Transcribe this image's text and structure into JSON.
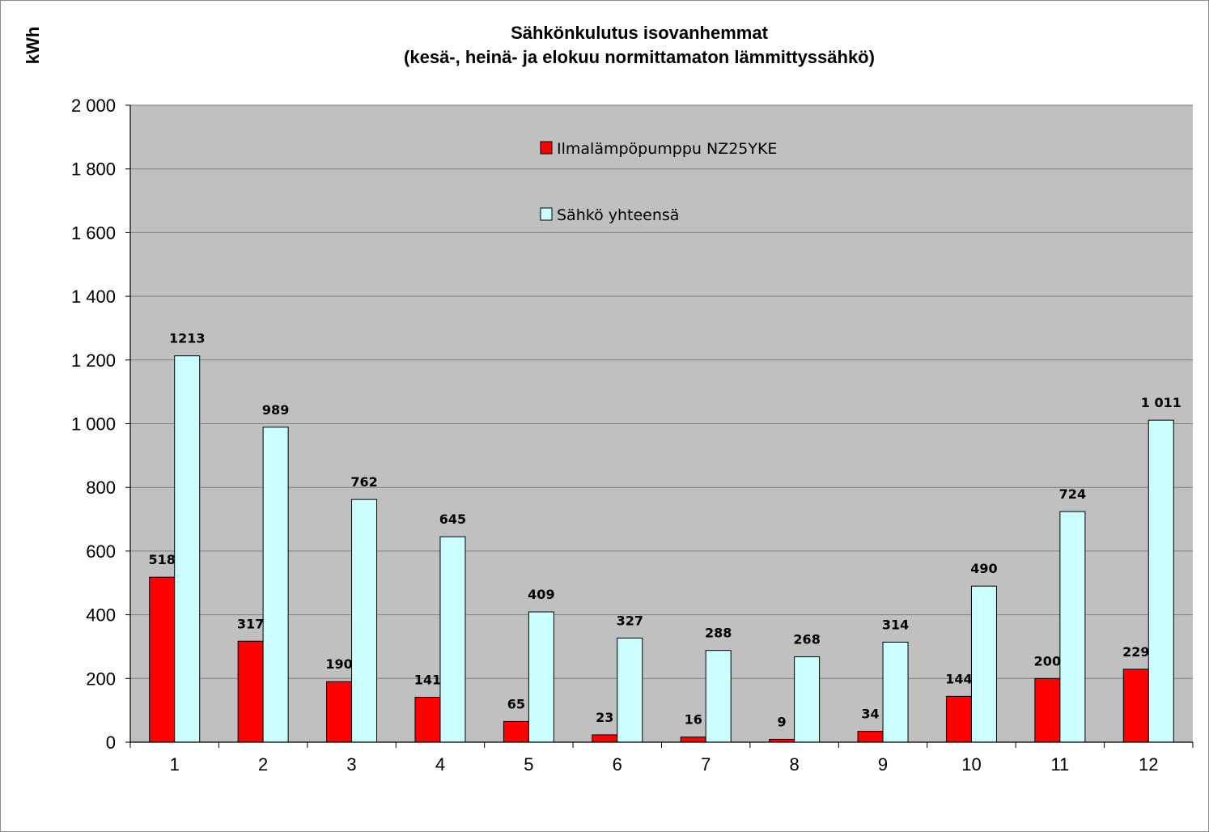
{
  "chart_data": {
    "type": "bar",
    "title": "Sähkönkulutus isovanhemmat",
    "subtitle": "(kesä-, heinä- ja elokuu normittamaton lämmittyssähkö)",
    "xlabel": "",
    "ylabel": "kWh",
    "ylim": [
      0,
      2000
    ],
    "yticks": [
      0,
      200,
      400,
      600,
      800,
      1000,
      1200,
      1400,
      1600,
      1800,
      2000
    ],
    "ytick_labels": [
      "0",
      "200",
      "400",
      "600",
      "800",
      "1 000",
      "1 200",
      "1 400",
      "1 600",
      "1 800",
      "2 000"
    ],
    "categories": [
      "1",
      "2",
      "3",
      "4",
      "5",
      "6",
      "7",
      "8",
      "9",
      "10",
      "11",
      "12"
    ],
    "grid": true,
    "legend_position": "top-center",
    "series": [
      {
        "name": "Ilmalämpöpumppu NZ25YKE",
        "color": "#ff0000",
        "values": [
          518,
          317,
          190,
          141,
          65,
          23,
          16,
          9,
          34,
          144,
          200,
          229
        ],
        "labels": [
          "518",
          "317",
          "190",
          "141",
          "65",
          "23",
          "16",
          "9",
          "34",
          "144",
          "200",
          "229"
        ]
      },
      {
        "name": "Sähkö yhteensä",
        "color": "#ccffff",
        "values": [
          1213,
          989,
          762,
          645,
          409,
          327,
          288,
          268,
          314,
          490,
          724,
          1011
        ],
        "labels": [
          "1213",
          "989",
          "762",
          "645",
          "409",
          "327",
          "288",
          "268",
          "314",
          "490",
          "724",
          "1 011"
        ]
      }
    ],
    "plot_background": "#c0c0c0"
  }
}
